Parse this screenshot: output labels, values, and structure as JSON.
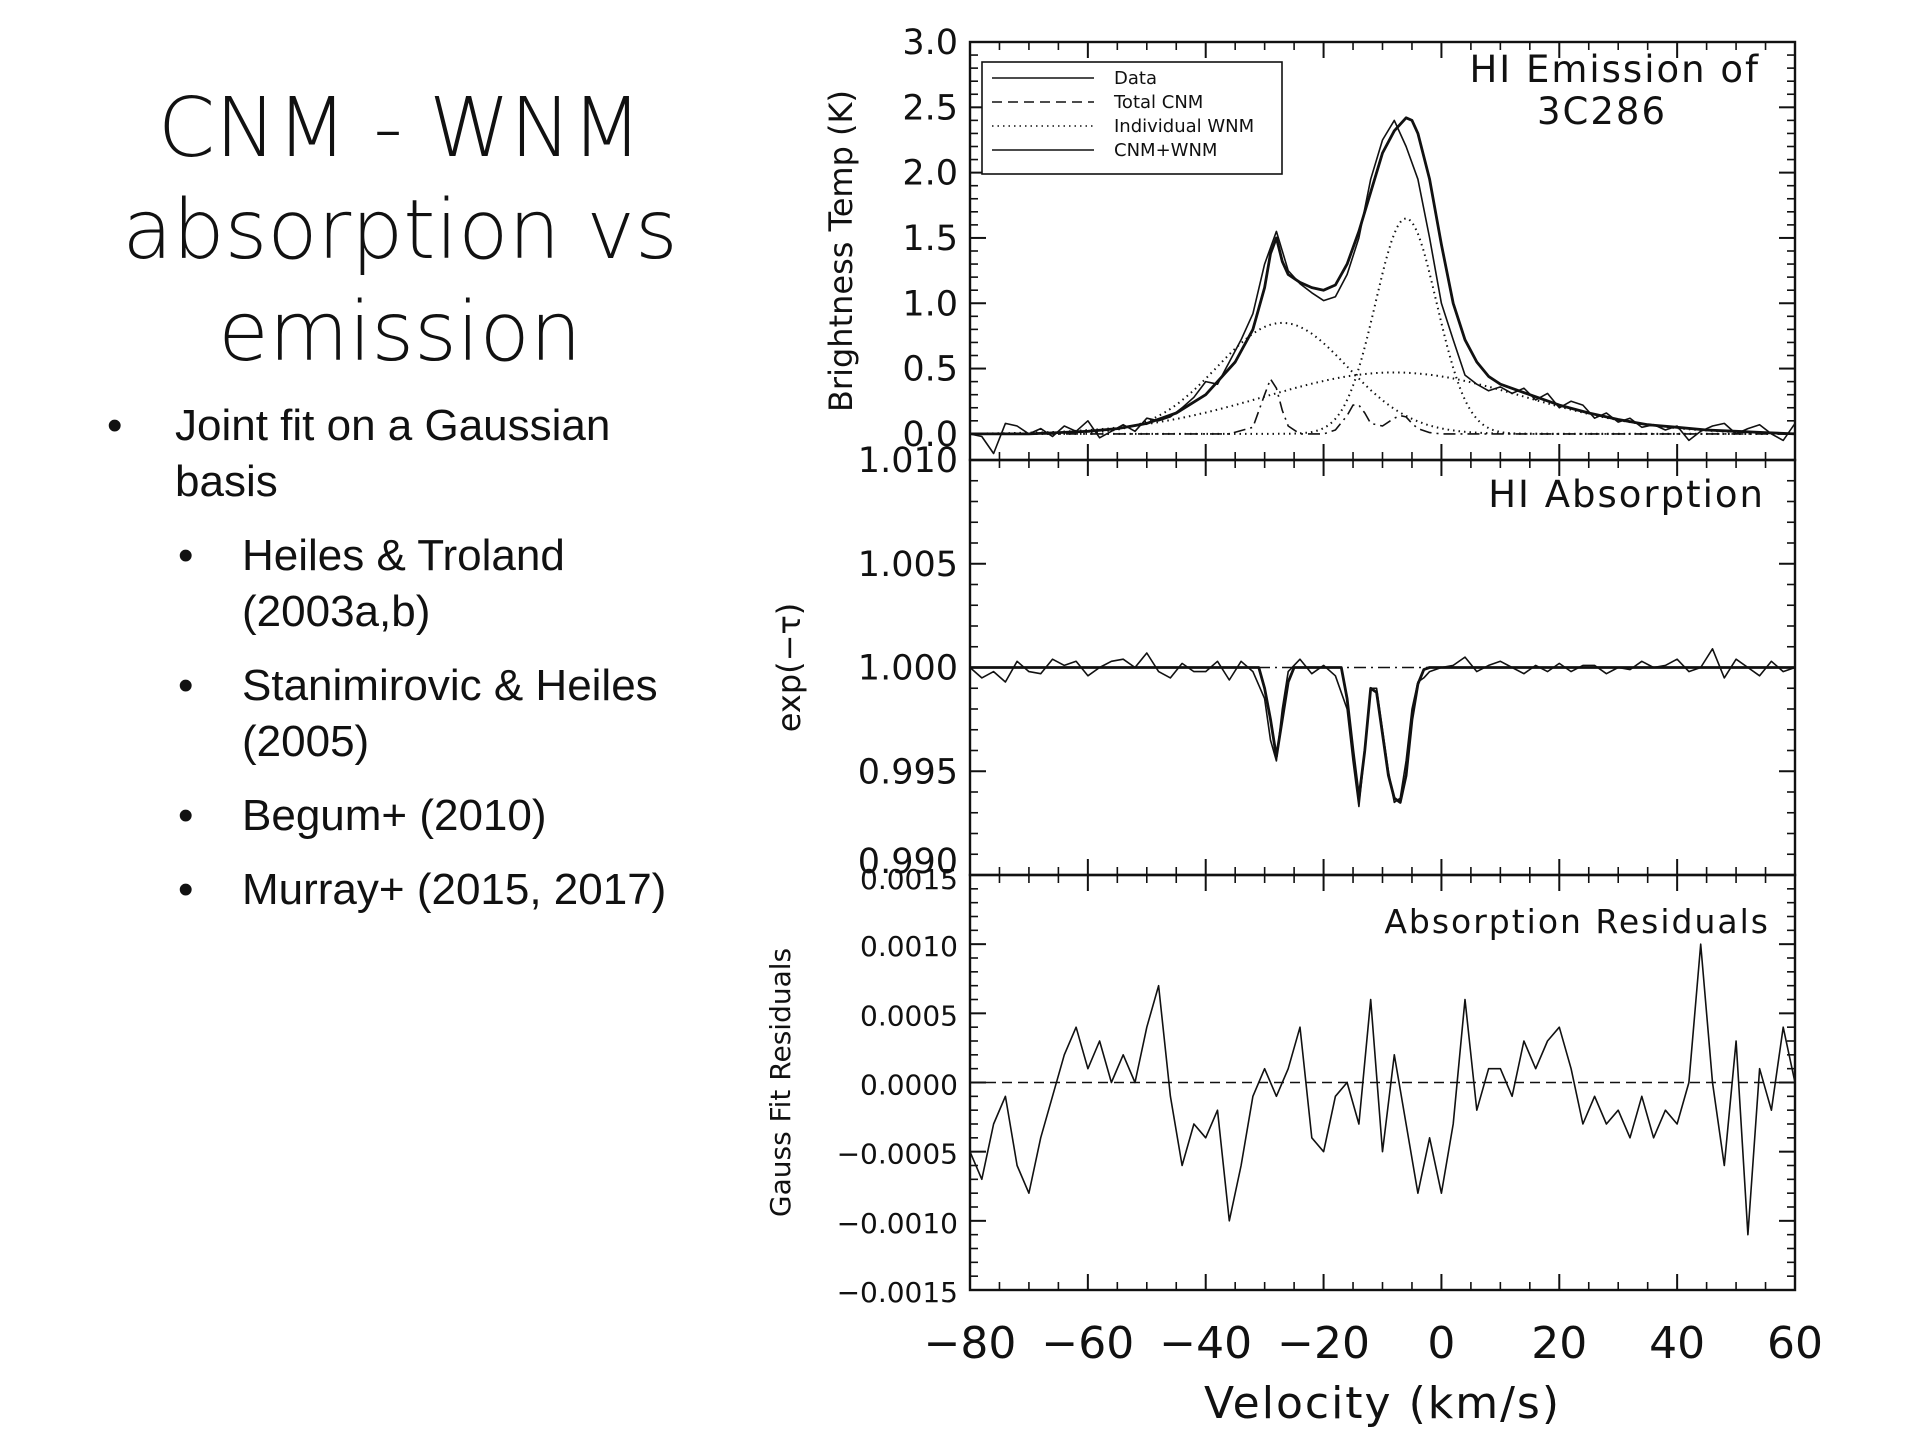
{
  "slide": {
    "title_lines": [
      "CNM - WNM",
      "absorption vs",
      "emission"
    ],
    "bullets": [
      {
        "level": 1,
        "lines": [
          "Joint fit on a Gaussian",
          "basis"
        ]
      },
      {
        "level": 2,
        "lines": [
          "Heiles & Troland",
          "(2003a,b)"
        ]
      },
      {
        "level": 2,
        "lines": [
          "Stanimirovic & Heiles",
          "(2005)"
        ]
      },
      {
        "level": 2,
        "lines": [
          "Begum+ (2010)"
        ]
      },
      {
        "level": 2,
        "lines": [
          "Murray+ (2015, 2017)"
        ]
      }
    ],
    "bullet_glyph": "•"
  },
  "chart_data": [
    {
      "type": "line",
      "title": "HI Emission of 3C286",
      "title_lines": [
        "HI Emission of",
        "3C286"
      ],
      "ylabel": "Brightness Temp (K)",
      "ylim": [
        -0.2,
        3.0
      ],
      "yticks": [
        0.0,
        0.5,
        1.0,
        1.5,
        2.0,
        2.5,
        3.0
      ],
      "ytick_labels": [
        "0.0",
        "0.5",
        "1.0",
        "1.5",
        "2.0",
        "2.5",
        "3.0"
      ],
      "xlim": [
        -80,
        60
      ],
      "legend": {
        "placement": "top-left",
        "entries": [
          "Data",
          "Total CNM",
          "Individual WNM",
          "CNM+WNM"
        ]
      },
      "series": [
        {
          "name": "Data",
          "style": "solid-thin",
          "x": [
            -80,
            -78,
            -76,
            -74,
            -72,
            -70,
            -68,
            -66,
            -64,
            -62,
            -60,
            -58,
            -56,
            -54,
            -52,
            -50,
            -48,
            -46,
            -44,
            -42,
            -40,
            -38,
            -36,
            -34,
            -32,
            -30,
            -28,
            -26,
            -24,
            -22,
            -20,
            -18,
            -16,
            -14,
            -12,
            -10,
            -8,
            -6,
            -4,
            -2,
            0,
            2,
            4,
            6,
            8,
            10,
            12,
            14,
            16,
            18,
            20,
            22,
            24,
            26,
            28,
            30,
            32,
            34,
            36,
            38,
            40,
            42,
            44,
            46,
            48,
            50,
            52,
            54,
            56,
            58,
            60
          ],
          "y": [
            0.0,
            -0.02,
            -0.15,
            0.08,
            0.06,
            0.0,
            0.04,
            -0.02,
            0.06,
            0.02,
            0.1,
            -0.03,
            0.02,
            0.07,
            0.02,
            0.12,
            0.1,
            0.13,
            0.2,
            0.28,
            0.4,
            0.38,
            0.55,
            0.72,
            0.92,
            1.3,
            1.55,
            1.25,
            1.15,
            1.08,
            1.02,
            1.05,
            1.22,
            1.5,
            1.95,
            2.25,
            2.4,
            2.2,
            1.95,
            1.5,
            1.0,
            0.72,
            0.45,
            0.38,
            0.33,
            0.36,
            0.31,
            0.35,
            0.26,
            0.31,
            0.2,
            0.25,
            0.22,
            0.12,
            0.16,
            0.09,
            0.12,
            0.05,
            0.07,
            0.03,
            0.06,
            -0.05,
            0.02,
            0.06,
            0.08,
            0.0,
            0.04,
            0.07,
            0.0,
            -0.05,
            0.08
          ]
        },
        {
          "name": "CNM+WNM",
          "style": "solid-thick",
          "x": [
            -80,
            -75,
            -70,
            -65,
            -60,
            -55,
            -50,
            -45,
            -40,
            -35,
            -32,
            -30,
            -29,
            -28,
            -27,
            -26,
            -24,
            -22,
            -20,
            -18,
            -16,
            -14,
            -12,
            -10,
            -8,
            -6,
            -5,
            -4,
            -2,
            0,
            2,
            4,
            6,
            8,
            10,
            15,
            20,
            25,
            30,
            35,
            40,
            45,
            50,
            55,
            60
          ],
          "y": [
            0.0,
            0.0,
            0.0,
            0.01,
            0.02,
            0.04,
            0.08,
            0.16,
            0.3,
            0.55,
            0.8,
            1.12,
            1.38,
            1.5,
            1.32,
            1.22,
            1.16,
            1.12,
            1.1,
            1.14,
            1.3,
            1.55,
            1.85,
            2.15,
            2.32,
            2.42,
            2.4,
            2.3,
            1.95,
            1.45,
            1.0,
            0.72,
            0.55,
            0.44,
            0.38,
            0.3,
            0.22,
            0.16,
            0.11,
            0.07,
            0.05,
            0.03,
            0.02,
            0.01,
            0.0
          ]
        },
        {
          "name": "Total CNM",
          "style": "dash-dot",
          "x": [
            -80,
            -36,
            -32,
            -30,
            -29,
            -28,
            -27,
            -26,
            -24,
            -20,
            -18,
            -16,
            -15,
            -14,
            -13,
            -12,
            -10,
            -8,
            -7,
            -6,
            -5,
            -4,
            -2,
            0,
            60
          ],
          "y": [
            0.0,
            0.0,
            0.05,
            0.3,
            0.42,
            0.35,
            0.18,
            0.06,
            0.0,
            0.0,
            0.03,
            0.14,
            0.22,
            0.22,
            0.16,
            0.08,
            0.06,
            0.12,
            0.14,
            0.13,
            0.08,
            0.04,
            0.01,
            0.0,
            0.0
          ]
        },
        {
          "name": "Individual WNM 1",
          "style": "dotted",
          "gaussian": {
            "amp": 0.85,
            "center": -27,
            "sigma": 11
          }
        },
        {
          "name": "Individual WNM 2",
          "style": "dotted",
          "gaussian": {
            "amp": 1.65,
            "center": -6,
            "sigma": 5.2
          }
        },
        {
          "name": "Individual WNM 3",
          "style": "dotted",
          "gaussian": {
            "amp": 0.47,
            "center": -8,
            "sigma": 22
          }
        }
      ]
    },
    {
      "type": "line",
      "title": "HI Absorption",
      "ylabel": "exp(−τ)",
      "ylim": [
        0.99,
        1.01
      ],
      "yticks": [
        0.99,
        0.995,
        1.0,
        1.005,
        1.01
      ],
      "ytick_labels": [
        "0.990",
        "0.995",
        "1.000",
        "1.005",
        "1.010"
      ],
      "xlim": [
        -80,
        60
      ],
      "series": [
        {
          "name": "Data",
          "style": "solid-thin",
          "x": [
            -80,
            -78,
            -76,
            -74,
            -72,
            -70,
            -68,
            -66,
            -64,
            -62,
            -60,
            -58,
            -56,
            -54,
            -52,
            -50,
            -48,
            -46,
            -44,
            -42,
            -40,
            -38,
            -36,
            -34,
            -32,
            -30,
            -29,
            -28,
            -27,
            -26,
            -24,
            -22,
            -20,
            -18,
            -16,
            -15,
            -14,
            -13,
            -12,
            -11,
            -10,
            -9,
            -8,
            -7,
            -6,
            -5,
            -4,
            -3,
            -2,
            0,
            2,
            4,
            6,
            8,
            10,
            12,
            14,
            16,
            18,
            20,
            22,
            24,
            26,
            28,
            30,
            32,
            34,
            36,
            38,
            40,
            42,
            44,
            46,
            48,
            50,
            52,
            54,
            56,
            58,
            60
          ],
          "y": [
            1.0,
            0.9995,
            0.9998,
            0.9993,
            1.0003,
            0.9998,
            0.9997,
            1.0004,
            1.0001,
            1.0003,
            0.9996,
            1.0,
            1.0003,
            1.0004,
            1.0,
            1.0007,
            0.9998,
            0.9995,
            1.0002,
            0.9998,
            0.9998,
            1.0003,
            0.9994,
            1.0003,
            0.9998,
            0.9985,
            0.9965,
            0.9955,
            0.998,
            0.9998,
            1.0004,
            0.9997,
            1.0001,
            0.9996,
            0.998,
            0.9955,
            0.9933,
            0.996,
            0.999,
            0.999,
            0.997,
            0.995,
            0.9935,
            0.9937,
            0.9955,
            0.998,
            0.9993,
            0.9995,
            0.9998,
            1.0,
            1.0001,
            1.0005,
            0.9998,
            1.0001,
            1.0003,
            1.0,
            0.9997,
            1.0001,
            0.9998,
            1.0002,
            0.9998,
            1.0001,
            1.0001,
            0.9997,
            1.0,
            0.9999,
            1.0003,
            1.0,
            1.0001,
            1.0004,
            0.9998,
            1.0,
            1.0009,
            0.9995,
            1.0004,
            1.0,
            0.9996,
            1.0003,
            0.9998,
            1.0
          ]
        },
        {
          "name": "CNM+WNM",
          "style": "solid-thick",
          "x": [
            -80,
            -31,
            -30,
            -29,
            -28,
            -27,
            -26,
            -25,
            -17,
            -16,
            -15,
            -14,
            -13,
            -12,
            -11,
            -10,
            -9,
            -8,
            -7,
            -6,
            -5,
            -4,
            -3,
            -2,
            60
          ],
          "y": [
            1.0,
            1.0,
            0.999,
            0.9975,
            0.9957,
            0.9975,
            0.9993,
            1.0,
            1.0,
            0.9985,
            0.996,
            0.9937,
            0.996,
            0.999,
            0.9988,
            0.9968,
            0.9948,
            0.9937,
            0.9935,
            0.9948,
            0.9975,
            0.9992,
            0.9999,
            1.0,
            1.0
          ]
        },
        {
          "name": "Baseline",
          "style": "dash-dot",
          "x": [
            -80,
            60
          ],
          "y": [
            1.0,
            1.0
          ]
        }
      ]
    },
    {
      "type": "line",
      "title": "Absorption Residuals",
      "ylabel": "Gauss Fit Residuals",
      "xlabel": "Velocity (km/s)",
      "ylim": [
        -0.0015,
        0.0015
      ],
      "yticks": [
        -0.0015,
        -0.001,
        -0.0005,
        0.0,
        0.0005,
        0.001,
        0.0015
      ],
      "ytick_labels": [
        "−0.0015",
        "−0.0010",
        "−0.0005",
        "0.0000",
        "0.0005",
        "0.0010",
        "0.0015"
      ],
      "xlim": [
        -80,
        60
      ],
      "xticks": [
        -80,
        -60,
        -40,
        -20,
        0,
        20,
        40,
        60
      ],
      "xtick_labels": [
        "−80",
        "−60",
        "−40",
        "−20",
        "0",
        "20",
        "40",
        "60"
      ],
      "series": [
        {
          "name": "Residuals",
          "style": "solid-thin",
          "x": [
            -80,
            -78,
            -76,
            -74,
            -72,
            -70,
            -68,
            -66,
            -64,
            -62,
            -60,
            -58,
            -56,
            -54,
            -52,
            -50,
            -48,
            -46,
            -44,
            -42,
            -40,
            -38,
            -36,
            -34,
            -32,
            -30,
            -28,
            -26,
            -24,
            -22,
            -20,
            -18,
            -16,
            -14,
            -12,
            -10,
            -8,
            -6,
            -4,
            -2,
            0,
            2,
            4,
            6,
            8,
            10,
            12,
            14,
            16,
            18,
            20,
            22,
            24,
            26,
            28,
            30,
            32,
            34,
            36,
            38,
            40,
            42,
            44,
            46,
            48,
            50,
            52,
            54,
            56,
            58,
            60
          ],
          "y": [
            -0.0005,
            -0.0007,
            -0.0003,
            -0.0001,
            -0.0006,
            -0.0008,
            -0.0004,
            -0.0001,
            0.0002,
            0.0004,
            0.0001,
            0.0003,
            0.0,
            0.0002,
            0.0,
            0.0004,
            0.0007,
            -0.0001,
            -0.0006,
            -0.0003,
            -0.0004,
            -0.0002,
            -0.001,
            -0.0006,
            -0.0001,
            0.0001,
            -0.0001,
            0.0001,
            0.0004,
            -0.0004,
            -0.0005,
            -0.0001,
            0.0,
            -0.0003,
            0.0006,
            -0.0005,
            0.0002,
            -0.0003,
            -0.0008,
            -0.0004,
            -0.0008,
            -0.0003,
            0.0006,
            -0.0002,
            0.0001,
            0.0001,
            -0.0001,
            0.0003,
            0.0001,
            0.0003,
            0.0004,
            0.0001,
            -0.0003,
            -0.0001,
            -0.0003,
            -0.0002,
            -0.0004,
            -0.0001,
            -0.0004,
            -0.0002,
            -0.0003,
            0.0,
            0.001,
            0.0,
            -0.0006,
            0.0003,
            -0.0011,
            0.0001,
            -0.0002,
            0.0004,
            0.0
          ]
        },
        {
          "name": "Zero",
          "style": "dashed",
          "x": [
            -80,
            60
          ],
          "y": [
            0.0,
            0.0
          ]
        }
      ]
    }
  ]
}
